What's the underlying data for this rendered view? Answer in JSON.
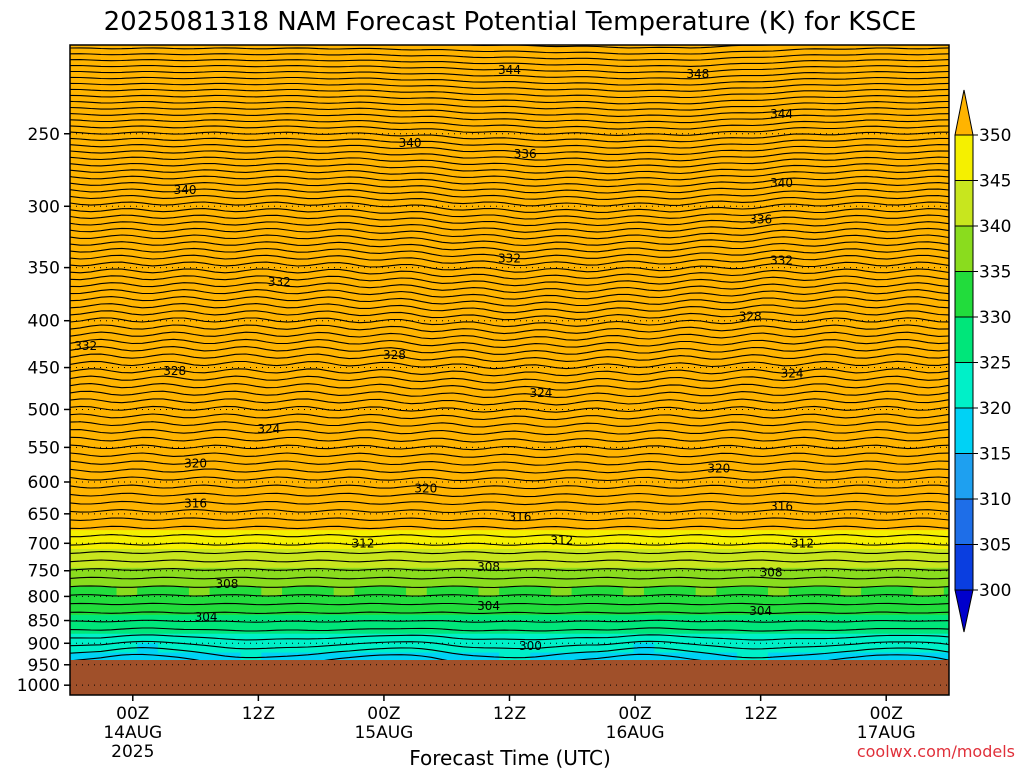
{
  "chart_data": {
    "type": "contour",
    "title": "2025081318 NAM Forecast Potential Temperature (K) for KSCE",
    "xlabel": "Forecast Time (UTC)",
    "y_axis": {
      "ticks": [
        250,
        300,
        350,
        400,
        450,
        500,
        550,
        600,
        650,
        700,
        750,
        800,
        850,
        900,
        950,
        1000
      ],
      "range": [
        200,
        1025
      ],
      "inverted": true,
      "scale": "log",
      "grid": "dotted"
    },
    "x_axis": {
      "ticks": [
        {
          "hours": 6,
          "line1": "00Z",
          "line2": "14AUG",
          "line3": "2025"
        },
        {
          "hours": 18,
          "line1": "12Z",
          "line2": "",
          "line3": ""
        },
        {
          "hours": 30,
          "line1": "00Z",
          "line2": "15AUG",
          "line3": ""
        },
        {
          "hours": 42,
          "line1": "12Z",
          "line2": "",
          "line3": ""
        },
        {
          "hours": 54,
          "line1": "00Z",
          "line2": "16AUG",
          "line3": ""
        },
        {
          "hours": 66,
          "line1": "12Z",
          "line2": "",
          "line3": ""
        },
        {
          "hours": 78,
          "line1": "00Z",
          "line2": "17AUG",
          "line3": ""
        }
      ],
      "range": [
        0,
        84
      ]
    },
    "colorbar": {
      "levels": [
        300,
        305,
        310,
        315,
        320,
        325,
        330,
        335,
        340,
        345,
        350
      ],
      "colors": [
        "#0000cc",
        "#0a3ee0",
        "#1e6ee8",
        "#1ea0f0",
        "#00d2f5",
        "#00f0c8",
        "#00e67a",
        "#22dc3c",
        "#8adc1e",
        "#c8e61e",
        "#f5f000",
        "#ffb400"
      ]
    },
    "contour_interval": 2,
    "contour_labels": [
      {
        "value": 344,
        "hours": 42,
        "p": 213
      },
      {
        "value": 348,
        "hours": 60,
        "p": 215
      },
      {
        "value": 344,
        "hours": 68,
        "p": 238
      },
      {
        "value": 340,
        "hours": 32.5,
        "p": 256
      },
      {
        "value": 336,
        "hours": 43.5,
        "p": 263
      },
      {
        "value": 340,
        "hours": 68,
        "p": 283
      },
      {
        "value": 340,
        "hours": 11,
        "p": 288
      },
      {
        "value": 336,
        "hours": 66,
        "p": 310
      },
      {
        "value": 332,
        "hours": 42,
        "p": 342
      },
      {
        "value": 332,
        "hours": 68,
        "p": 344
      },
      {
        "value": 332,
        "hours": 20,
        "p": 363
      },
      {
        "value": 328,
        "hours": 65,
        "p": 396
      },
      {
        "value": 332,
        "hours": 1.5,
        "p": 426
      },
      {
        "value": 328,
        "hours": 31,
        "p": 436
      },
      {
        "value": 328,
        "hours": 10,
        "p": 454
      },
      {
        "value": 324,
        "hours": 69,
        "p": 457
      },
      {
        "value": 324,
        "hours": 45,
        "p": 480
      },
      {
        "value": 324,
        "hours": 19,
        "p": 525
      },
      {
        "value": 320,
        "hours": 12,
        "p": 573
      },
      {
        "value": 320,
        "hours": 62,
        "p": 580
      },
      {
        "value": 320,
        "hours": 34,
        "p": 610
      },
      {
        "value": 316,
        "hours": 68,
        "p": 638
      },
      {
        "value": 316,
        "hours": 12,
        "p": 633
      },
      {
        "value": 316,
        "hours": 43,
        "p": 655
      },
      {
        "value": 312,
        "hours": 47,
        "p": 695
      },
      {
        "value": 312,
        "hours": 28,
        "p": 700
      },
      {
        "value": 312,
        "hours": 70,
        "p": 700
      },
      {
        "value": 308,
        "hours": 40,
        "p": 743
      },
      {
        "value": 308,
        "hours": 67,
        "p": 753
      },
      {
        "value": 308,
        "hours": 15,
        "p": 775
      },
      {
        "value": 304,
        "hours": 40,
        "p": 820
      },
      {
        "value": 304,
        "hours": 66,
        "p": 830
      },
      {
        "value": 304,
        "hours": 13,
        "p": 842
      },
      {
        "value": 300,
        "hours": 44,
        "p": 906
      }
    ]
  },
  "credit": "coolwx.com/models"
}
